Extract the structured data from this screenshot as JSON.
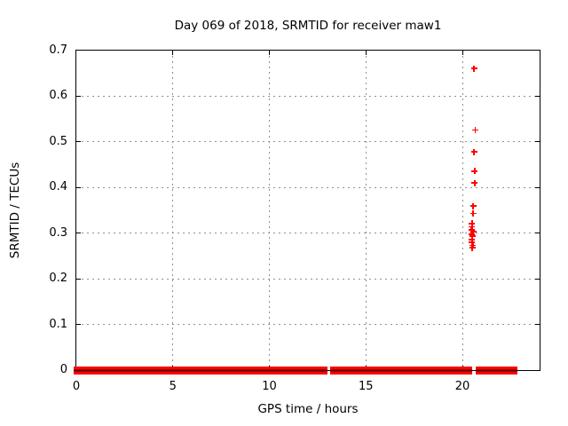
{
  "chart_data": {
    "type": "scatter",
    "title": "Day 069 of 2018, SRMTID for receiver maw1",
    "xlabel": "GPS time / hours",
    "ylabel": "SRMTID / TECUs",
    "xlim": [
      0,
      24
    ],
    "ylim": [
      0,
      0.7
    ],
    "xticks": [
      0,
      5,
      10,
      15,
      20
    ],
    "xtick_labels": [
      "0",
      "5",
      "10",
      "15",
      "20"
    ],
    "yticks": [
      0,
      0.1,
      0.2,
      0.3,
      0.4,
      0.5,
      0.6,
      0.7
    ],
    "ytick_labels": [
      "0",
      "0.1",
      "0.2",
      "0.3",
      "0.4",
      "0.5",
      "0.6",
      "0.7"
    ],
    "grid": true,
    "legend_position": "none",
    "marker": "plus",
    "marker_color": "#ff0000",
    "grid_color": "#909090",
    "axis_color": "#000000",
    "background_color": "#ffffff",
    "baseline_band": {
      "description": "continuous dense run of + markers at SRMTID ~ 0 TECUs",
      "value": 0,
      "segments": [
        {
          "start_hour": -0.15,
          "end_hour": 13.0
        },
        {
          "start_hour": 13.15,
          "end_hour": 20.5
        },
        {
          "start_hour": 20.7,
          "end_hour": 22.83
        }
      ]
    },
    "elevated_points": [
      {
        "x": 20.6,
        "y": 0.661
      },
      {
        "x": 20.67,
        "y": 0.526
      },
      {
        "x": 20.61,
        "y": 0.478
      },
      {
        "x": 20.64,
        "y": 0.436
      },
      {
        "x": 20.64,
        "y": 0.41
      },
      {
        "x": 20.56,
        "y": 0.359
      },
      {
        "x": 20.56,
        "y": 0.343
      },
      {
        "x": 20.5,
        "y": 0.321
      },
      {
        "x": 20.5,
        "y": 0.314
      },
      {
        "x": 20.46,
        "y": 0.307
      },
      {
        "x": 20.56,
        "y": 0.303
      },
      {
        "x": 20.46,
        "y": 0.298
      },
      {
        "x": 20.53,
        "y": 0.293
      },
      {
        "x": 20.5,
        "y": 0.286
      },
      {
        "x": 20.48,
        "y": 0.28
      },
      {
        "x": 20.54,
        "y": 0.273
      },
      {
        "x": 20.52,
        "y": 0.268
      }
    ]
  }
}
